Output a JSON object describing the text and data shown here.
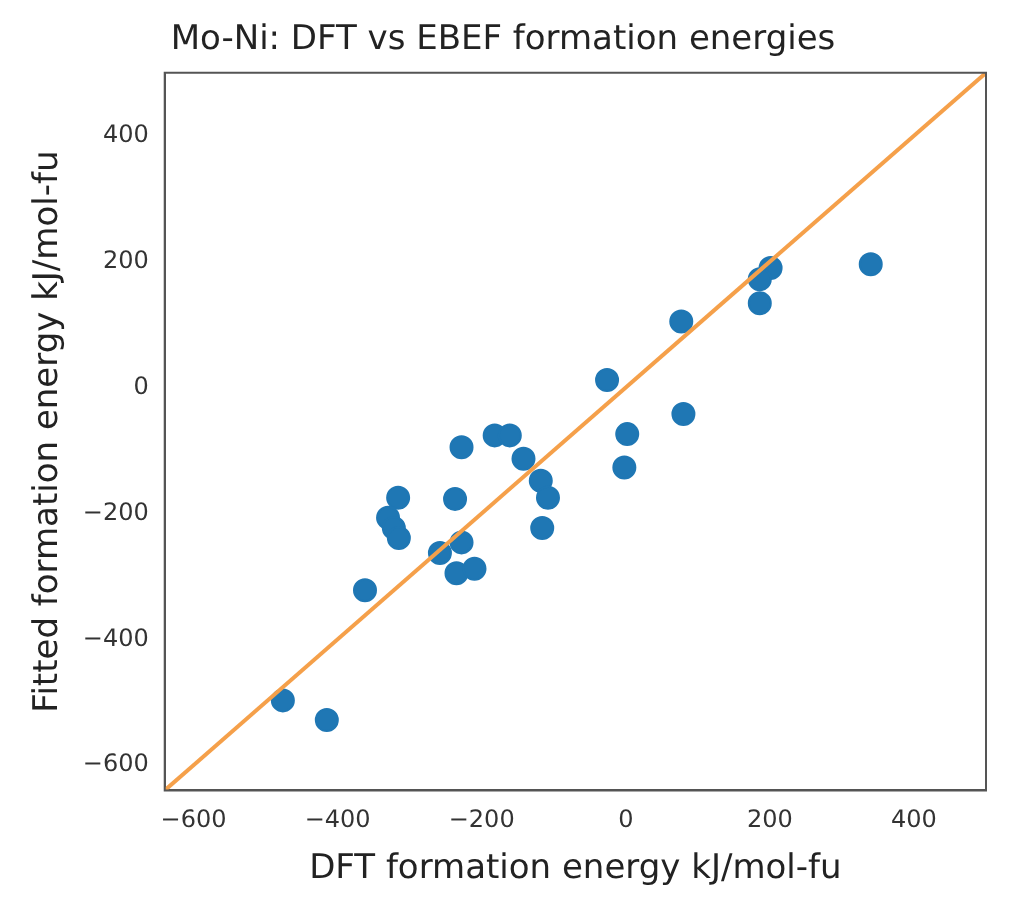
{
  "chart_data": {
    "type": "scatter",
    "title": "Mo-Ni: DFT vs EBEF formation energies",
    "xlabel": "DFT formation energy kJ/mol-fu",
    "ylabel": "Fitted formation energy kJ/mol-fu",
    "xlim": [
      -640,
      500
    ],
    "ylim": [
      -640,
      500
    ],
    "xticks": [
      -600,
      -400,
      -200,
      0,
      200,
      400
    ],
    "yticks": [
      -600,
      -400,
      -200,
      0,
      200,
      400
    ],
    "grid": false,
    "legend": false,
    "marker": "circle",
    "series": [
      {
        "type": "scatter",
        "color": "#1f77b4",
        "x": [
          340,
          201,
          186,
          186,
          77,
          -26,
          80,
          2,
          -228,
          -182,
          -161,
          -142,
          -2,
          -118,
          -108,
          -116,
          -316,
          -330,
          -322,
          -315,
          -237,
          -228,
          -258,
          -235,
          -210,
          -362,
          -476,
          -415
        ],
        "values": [
          196,
          190,
          172,
          134,
          105,
          12,
          -42,
          -74,
          -95,
          -76,
          -76,
          -113,
          -127,
          -148,
          -175,
          -223,
          -175,
          -207,
          -223,
          -239,
          -177,
          -246,
          -263,
          -295,
          -288,
          -322,
          -497,
          -528
        ]
      },
      {
        "type": "line",
        "color": "#f5a04a",
        "marker": "none",
        "line_style": "solid",
        "x": [
          -640,
          500
        ],
        "values": [
          -640,
          500
        ]
      }
    ]
  }
}
